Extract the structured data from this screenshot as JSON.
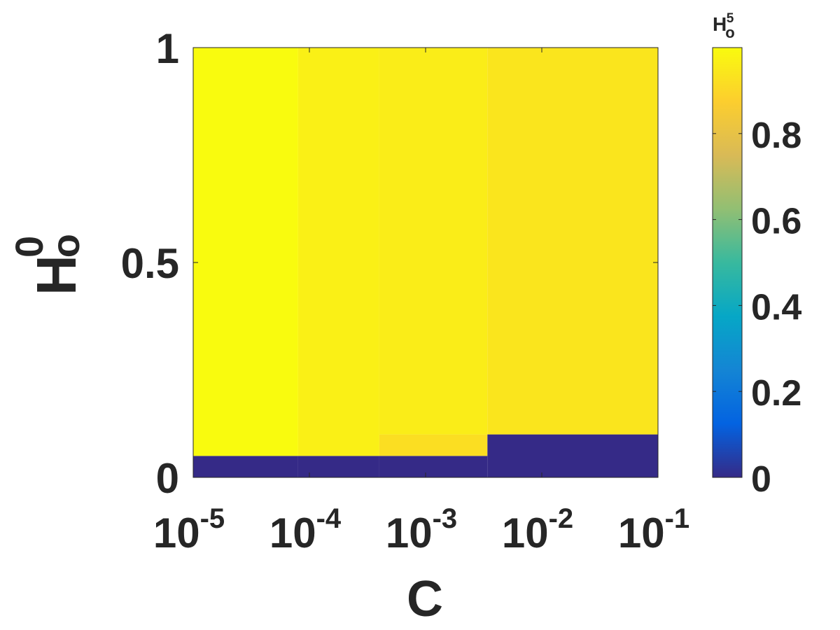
{
  "chart_data": {
    "type": "heatmap",
    "xlabel": "C",
    "ylabel": {
      "base": "H",
      "sup": "0",
      "sub": "o"
    },
    "colorbar_label": {
      "base": "H",
      "sup": "5",
      "sub": "o"
    },
    "x_scale": "log",
    "x_ticks": [
      {
        "base": "10",
        "exp": "-5",
        "value": 1e-05
      },
      {
        "base": "10",
        "exp": "-4",
        "value": 0.0001
      },
      {
        "base": "10",
        "exp": "-3",
        "value": 0.001
      },
      {
        "base": "10",
        "exp": "-2",
        "value": 0.01
      },
      {
        "base": "10",
        "exp": "-1",
        "value": 0.1
      }
    ],
    "y_ticks": [
      {
        "label": "0",
        "value": 0
      },
      {
        "label": "0.5",
        "value": 0.5
      },
      {
        "label": "1",
        "value": 1
      }
    ],
    "colorbar_ticks": [
      {
        "label": "0",
        "value": 0
      },
      {
        "label": "0.2",
        "value": 0.2
      },
      {
        "label": "0.4",
        "value": 0.4
      },
      {
        "label": "0.6",
        "value": 0.6
      },
      {
        "label": "0.8",
        "value": 0.8
      }
    ],
    "xlim": [
      1e-05,
      0.1
    ],
    "ylim": [
      0,
      1
    ],
    "clim": [
      0,
      1
    ],
    "colormap": "parula",
    "colormap_stops": [
      "#352a87",
      "#0363e1",
      "#1485d4",
      "#06a7c6",
      "#38b99e",
      "#92bf73",
      "#d9ba56",
      "#fcce2e",
      "#f9fb0e"
    ],
    "cells": [
      {
        "x0": 1e-05,
        "x1": 8e-05,
        "y0": 0,
        "y1": 0.05,
        "value": 0.0
      },
      {
        "x0": 1e-05,
        "x1": 8e-05,
        "y0": 0.05,
        "y1": 1,
        "value": 1.0
      },
      {
        "x0": 8e-05,
        "x1": 0.0004,
        "y0": 0,
        "y1": 0.05,
        "value": 0.0
      },
      {
        "x0": 8e-05,
        "x1": 0.0004,
        "y0": 0.05,
        "y1": 1,
        "value": 0.97
      },
      {
        "x0": 0.0004,
        "x1": 0.0034,
        "y0": 0,
        "y1": 0.05,
        "value": 0.0
      },
      {
        "x0": 0.0034,
        "x1": 0.1,
        "y0": 0,
        "y1": 0.1,
        "value": 0.0
      },
      {
        "x0": 0.0004,
        "x1": 0.0034,
        "y0": 0.05,
        "y1": 0.1,
        "value": 0.92
      },
      {
        "x0": 0.0004,
        "x1": 0.0034,
        "y0": 0.1,
        "y1": 1,
        "value": 0.96
      },
      {
        "x0": 0.0034,
        "x1": 0.1,
        "y0": 0.1,
        "y1": 1,
        "value": 0.94
      }
    ]
  }
}
